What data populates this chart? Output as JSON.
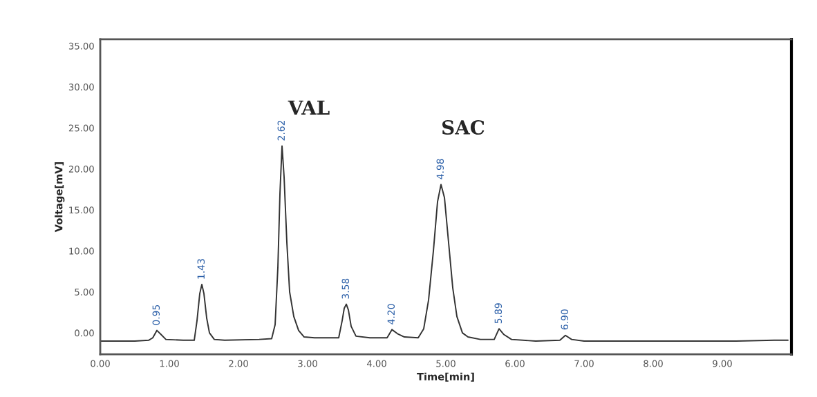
{
  "chart_data": {
    "type": "line",
    "xlabel": "Time[min]",
    "ylabel": "Voltage[mV]",
    "x": [
      0,
      0.5,
      0.7,
      0.76,
      0.82,
      0.88,
      0.95,
      1.2,
      1.36,
      1.4,
      1.44,
      1.47,
      1.5,
      1.54,
      1.58,
      1.65,
      1.8,
      2.3,
      2.48,
      2.53,
      2.57,
      2.6,
      2.63,
      2.66,
      2.7,
      2.74,
      2.8,
      2.87,
      2.95,
      3.1,
      3.45,
      3.5,
      3.53,
      3.56,
      3.59,
      3.63,
      3.7,
      3.9,
      4.15,
      4.22,
      4.3,
      4.4,
      4.6,
      4.68,
      4.75,
      4.82,
      4.88,
      4.93,
      4.98,
      5.04,
      5.1,
      5.16,
      5.24,
      5.32,
      5.5,
      5.7,
      5.77,
      5.84,
      5.95,
      6.3,
      6.65,
      6.73,
      6.82,
      7.0,
      8.0,
      8.5,
      9.2,
      9.75,
      9.95
    ],
    "series": [
      {
        "color": "#333333",
        "values": [
          -1.0,
          -1.0,
          -0.9,
          -0.6,
          0.3,
          -0.2,
          -0.8,
          -0.9,
          -0.9,
          1.5,
          4.8,
          5.9,
          4.8,
          1.8,
          0.0,
          -0.8,
          -0.9,
          -0.8,
          -0.7,
          1.0,
          8.0,
          17.0,
          22.8,
          19.0,
          11.0,
          5.0,
          2.0,
          0.3,
          -0.5,
          -0.6,
          -0.6,
          1.5,
          3.0,
          3.5,
          2.8,
          0.8,
          -0.4,
          -0.6,
          -0.6,
          0.4,
          -0.1,
          -0.5,
          -0.6,
          0.5,
          4.0,
          10.0,
          16.0,
          18.1,
          16.5,
          11.0,
          5.5,
          2.0,
          0.0,
          -0.5,
          -0.8,
          -0.8,
          0.5,
          -0.2,
          -0.8,
          -1.0,
          -0.9,
          -0.3,
          -0.8,
          -1.0,
          -1.0,
          -1.0,
          -1.0,
          -0.9,
          -0.9
        ]
      }
    ],
    "xlim": [
      0,
      10
    ],
    "ylim": [
      -2.6,
      35.8
    ],
    "xticks": [
      {
        "value": 0,
        "label": "0.00"
      },
      {
        "value": 1,
        "label": "1.00"
      },
      {
        "value": 2,
        "label": "2.00"
      },
      {
        "value": 3,
        "label": "3.00"
      },
      {
        "value": 4,
        "label": "4.00"
      },
      {
        "value": 5,
        "label": "5.00"
      },
      {
        "value": 6,
        "label": "6.00"
      },
      {
        "value": 7,
        "label": "7.00"
      },
      {
        "value": 8,
        "label": "8.00"
      },
      {
        "value": 9,
        "label": "9.00"
      }
    ],
    "yticks": [
      {
        "value": 0,
        "label": "0.00"
      },
      {
        "value": 5,
        "label": "5.00"
      },
      {
        "value": 10,
        "label": "10.00"
      },
      {
        "value": 15,
        "label": "15.00"
      },
      {
        "value": 20,
        "label": "20.00"
      },
      {
        "value": 25,
        "label": "25.00"
      },
      {
        "value": 30,
        "label": "30.00"
      },
      {
        "value": 35,
        "label": "35.00"
      }
    ],
    "grid": false,
    "annotations": [
      {
        "text": "0.95",
        "x": 0.82,
        "y": 0.3
      },
      {
        "text": "1.43",
        "x": 1.47,
        "y": 5.9
      },
      {
        "text": "2.62",
        "x": 2.63,
        "y": 22.8
      },
      {
        "text": "3.58",
        "x": 3.56,
        "y": 3.5
      },
      {
        "text": "4.20",
        "x": 4.22,
        "y": 0.4
      },
      {
        "text": "4.98",
        "x": 4.93,
        "y": 18.1
      },
      {
        "text": "5.89",
        "x": 5.77,
        "y": 0.5
      },
      {
        "text": "6.90",
        "x": 6.73,
        "y": -0.25
      },
      "VAL",
      "SAC"
    ]
  }
}
